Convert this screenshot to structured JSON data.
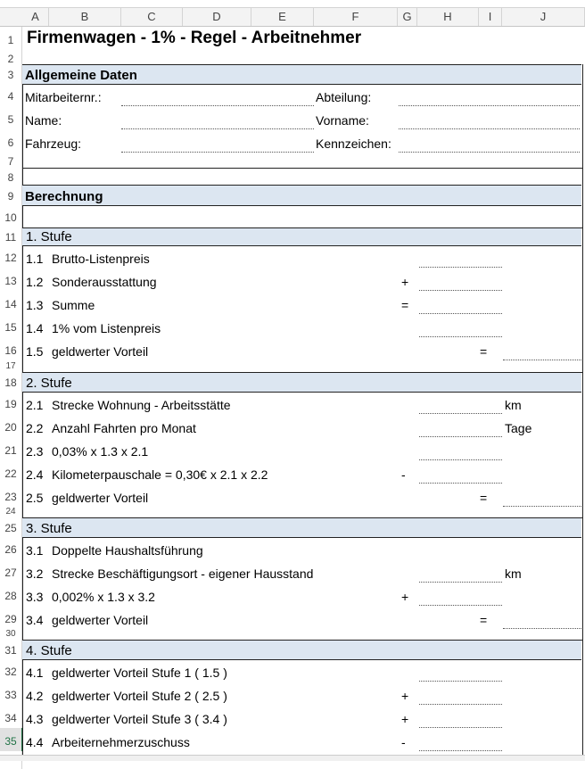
{
  "columns": [
    "A",
    "B",
    "C",
    "D",
    "E",
    "F",
    "G",
    "H",
    "I",
    "J"
  ],
  "selected_row": 35,
  "title": "Firmenwagen - 1% - Regel - Arbeitnehmer",
  "header_fill": "#dce6f1",
  "allgemein": {
    "header": "Allgemeine Daten",
    "fields": [
      {
        "row": 4,
        "left": "Mitarbeiternr.:",
        "right": "Abteilung:"
      },
      {
        "row": 5,
        "left": "Name:",
        "right": "Vorname:"
      },
      {
        "row": 6,
        "left": "Fahrzeug:",
        "right": "Kennzeichen:"
      }
    ]
  },
  "berechnung": "Berechnung",
  "sections": [
    {
      "row": 11,
      "title": "1. Stufe",
      "items": [
        {
          "row": 12,
          "num": "1.1",
          "label": "Brutto-Listenpreis",
          "op": "",
          "line": "H"
        },
        {
          "row": 13,
          "num": "1.2",
          "label": "Sonderausstattung",
          "op": "+",
          "line": "H"
        },
        {
          "row": 14,
          "num": "1.3",
          "label": "Summe",
          "op": "=",
          "line": "H"
        },
        {
          "row": 15,
          "num": "1.4",
          "label": "1% vom Listenpreis",
          "op": "",
          "line": "H"
        },
        {
          "row": 16,
          "num": "1.5",
          "label": "geldwerter Vorteil",
          "op": "=",
          "line": "J"
        }
      ]
    },
    {
      "row": 18,
      "title": "2. Stufe",
      "items": [
        {
          "row": 19,
          "num": "2.1",
          "label": "Strecke Wohnung - Arbeitsstätte",
          "op": "",
          "line": "H",
          "unit": "km"
        },
        {
          "row": 20,
          "num": "2.2",
          "label": "Anzahl Fahrten pro Monat",
          "op": "",
          "line": "H",
          "unit": "Tage"
        },
        {
          "row": 21,
          "num": "2.3",
          "label": "0,03% x 1.3 x 2.1",
          "op": "",
          "line": "H"
        },
        {
          "row": 22,
          "num": "2.4",
          "label": "Kilometerpauschale = 0,30€ x 2.1 x 2.2",
          "op": "-",
          "line": "H"
        },
        {
          "row": 23,
          "num": "2.5",
          "label": "geldwerter Vorteil",
          "op": "=",
          "line": "J"
        }
      ]
    },
    {
      "row": 25,
      "title": "3. Stufe",
      "items": [
        {
          "row": 26,
          "num": "3.1",
          "label": "Doppelte Haushaltsführung",
          "op": "",
          "line": ""
        },
        {
          "row": 27,
          "num": "3.2",
          "label": "Strecke Beschäftigungsort - eigener Hausstand",
          "op": "",
          "line": "H",
          "unit": "km"
        },
        {
          "row": 28,
          "num": "3.3",
          "label": "0,002% x 1.3 x 3.2",
          "op": "+",
          "line": "H"
        },
        {
          "row": 29,
          "num": "3.4",
          "label": "geldwerter Vorteil",
          "op": "=",
          "line": "J"
        }
      ]
    },
    {
      "row": 31,
      "title": "4. Stufe",
      "items": [
        {
          "row": 32,
          "num": "4.1",
          "label": "geldwerter Vorteil Stufe 1 ( 1.5 )",
          "op": "",
          "line": "H"
        },
        {
          "row": 33,
          "num": "4.2",
          "label": "geldwerter Vorteil Stufe 2 ( 2.5 )",
          "op": "+",
          "line": "H"
        },
        {
          "row": 34,
          "num": "4.3",
          "label": "geldwerter Vorteil Stufe 3 ( 3.4 )",
          "op": "+",
          "line": "H"
        },
        {
          "row": 35,
          "num": "4.4",
          "label": "Arbeiternehmerzuschuss",
          "op": "-",
          "line": "H"
        }
      ]
    }
  ]
}
